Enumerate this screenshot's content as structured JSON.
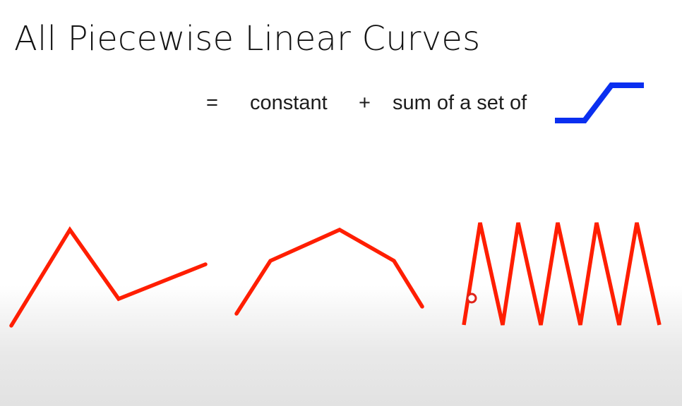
{
  "title": "All Piecewise Linear Curves",
  "formula": {
    "equals": "=",
    "term1": "constant",
    "plus": "+",
    "term2": "sum of a set of"
  },
  "icons": {
    "step_function": "hard-sigmoid-step-icon",
    "cursor": "cursor-dot-icon"
  },
  "colors": {
    "curve": "#ff1e00",
    "step": "#0a2ff0",
    "title_text": "#141414",
    "body_text": "#1c1c1c",
    "cursor": "#e0241a"
  },
  "diagram": {
    "curves": [
      {
        "name": "curve-a",
        "vertex_count": 4
      },
      {
        "name": "curve-b",
        "vertex_count": 5
      },
      {
        "name": "curve-c",
        "vertex_count": 11,
        "style": "zigzag"
      }
    ]
  }
}
